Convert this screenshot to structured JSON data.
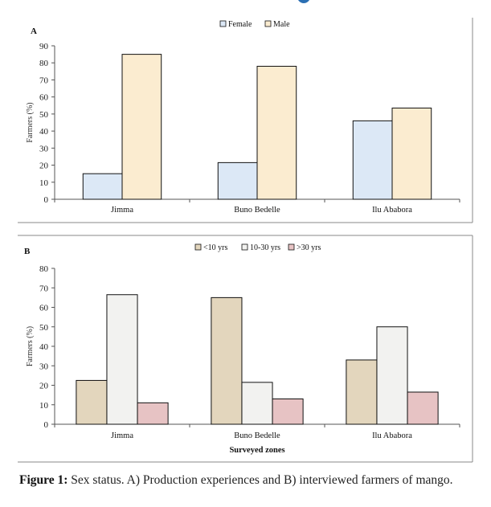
{
  "chart_data": [
    {
      "type": "bar",
      "panel": "A",
      "categories": [
        "Jimma",
        "Buno Bedelle",
        "Ilu Ababora"
      ],
      "series": [
        {
          "name": "Female",
          "values": [
            15,
            21.5,
            46
          ],
          "color": "#dce8f6"
        },
        {
          "name": "Male",
          "values": [
            85,
            78,
            53.5
          ],
          "color": "#fbecd0"
        }
      ],
      "ylabel": "Farmers (%)",
      "xlabel": "",
      "ylim": [
        0,
        90
      ],
      "yticks": [
        0,
        10,
        20,
        30,
        40,
        50,
        60,
        70,
        80,
        90
      ],
      "legend": "top-center",
      "grid": false
    },
    {
      "type": "bar",
      "panel": "B",
      "categories": [
        "Jimma",
        "Buno Bedelle",
        "Ilu Ababora"
      ],
      "series": [
        {
          "name": "<10 yrs",
          "values": [
            22.5,
            65,
            33
          ],
          "color": "#e3d6bd"
        },
        {
          "name": "10-30 yrs",
          "values": [
            66.5,
            21.5,
            50
          ],
          "color": "#f2f2f0"
        },
        {
          "name": ">30 yrs",
          "values": [
            11,
            13,
            16.5
          ],
          "color": "#e7c3c4"
        }
      ],
      "ylabel": "Farmers (%)",
      "xlabel": "Surveyed  zones",
      "ylim": [
        0,
        80
      ],
      "yticks": [
        0,
        10,
        20,
        30,
        40,
        50,
        60,
        70,
        80
      ],
      "legend": "top-center",
      "grid": false
    }
  ],
  "caption": {
    "label": "Figure 1:",
    "text": " Sex status. A) Production experiences and B) interviewed farmers of mango."
  }
}
